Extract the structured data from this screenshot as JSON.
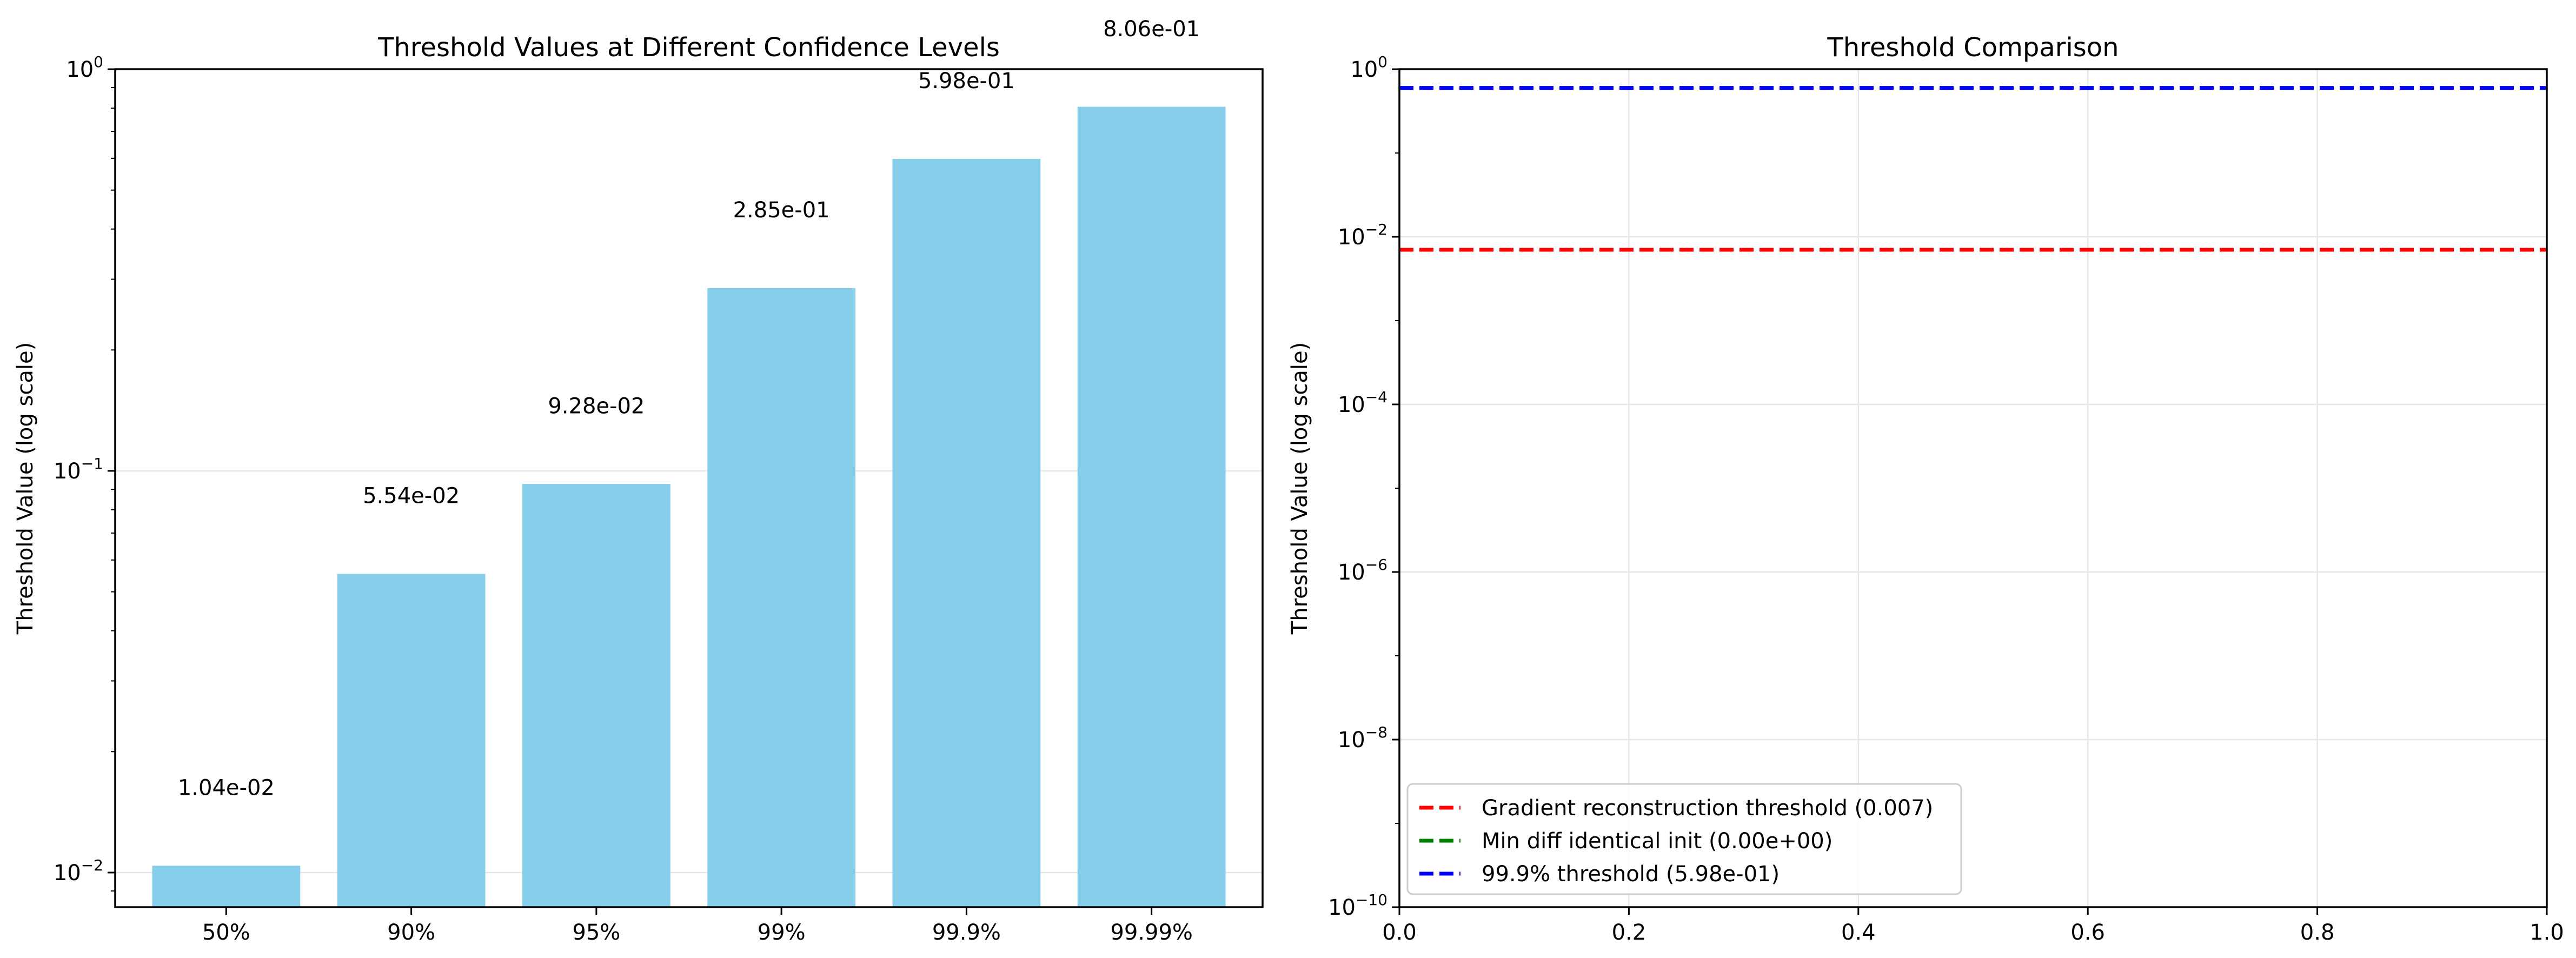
{
  "chart_data": [
    {
      "type": "bar",
      "title": "Threshold Values at Different Confidence Levels",
      "xlabel": "",
      "ylabel": "Threshold Value (log scale)",
      "yscale": "log",
      "ylim": [
        0.0082,
        1.0
      ],
      "yticks": [
        {
          "value": 0.01,
          "base": "10",
          "exp": "−2"
        },
        {
          "value": 0.1,
          "base": "10",
          "exp": "−1"
        },
        {
          "value": 1.0,
          "base": "10",
          "exp": "0"
        }
      ],
      "categories": [
        "50%",
        "90%",
        "95%",
        "99%",
        "99.9%",
        "99.99%"
      ],
      "values": [
        0.0104,
        0.0554,
        0.0928,
        0.285,
        0.598,
        0.806
      ],
      "value_labels": [
        "1.04e-02",
        "5.54e-02",
        "9.28e-02",
        "2.85e-01",
        "5.98e-01",
        "8.06e-01"
      ],
      "bar_color": "#87CEEB",
      "grid": "y"
    },
    {
      "type": "line",
      "title": "Threshold Comparison",
      "xlabel": "",
      "ylabel": "Threshold Value (log scale)",
      "yscale": "log",
      "xlim": [
        0.0,
        1.0
      ],
      "ylim": [
        1e-10,
        1.0
      ],
      "xticks": [
        "0.0",
        "0.2",
        "0.4",
        "0.6",
        "0.8",
        "1.0"
      ],
      "yticks": [
        {
          "value": 1e-10,
          "base": "10",
          "exp": "−10"
        },
        {
          "value": 1e-08,
          "base": "10",
          "exp": "−8"
        },
        {
          "value": 1e-06,
          "base": "10",
          "exp": "−6"
        },
        {
          "value": 0.0001,
          "base": "10",
          "exp": "−4"
        },
        {
          "value": 0.01,
          "base": "10",
          "exp": "−2"
        },
        {
          "value": 1.0,
          "base": "10",
          "exp": "0"
        }
      ],
      "series": [
        {
          "name": "Gradient reconstruction threshold (0.007)",
          "y": 0.007,
          "color": "#ff0000",
          "style": "dashed"
        },
        {
          "name": "Min diff identical init (0.00e+00)",
          "y": 0.0,
          "color": "#008000",
          "style": "dashed"
        },
        {
          "name": "99.9% threshold (5.98e-01)",
          "y": 0.598,
          "color": "#0000ff",
          "style": "dashed"
        }
      ],
      "legend": "lower-left",
      "grid": "both"
    }
  ]
}
